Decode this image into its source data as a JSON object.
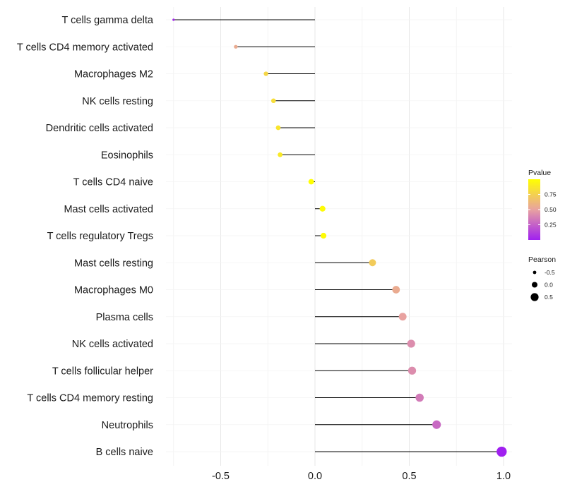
{
  "chart_data": {
    "type": "lollipop",
    "categories": [
      "T cells gamma delta",
      "T cells CD4 memory activated",
      "Macrophages M2",
      "NK cells resting",
      "Dendritic cells activated",
      "Eosinophils",
      "T cells CD4 naive",
      "Mast cells activated",
      "T cells regulatory  Tregs ",
      "Mast cells resting",
      "Macrophages M0",
      "Plasma cells",
      "NK cells activated",
      "T cells follicular helper",
      "T cells CD4 memory resting",
      "Neutrophils",
      "B cells naive"
    ],
    "values": [
      -0.75,
      -0.42,
      -0.26,
      -0.22,
      -0.195,
      -0.185,
      -0.02,
      0.04,
      0.045,
      0.305,
      0.43,
      0.465,
      0.51,
      0.515,
      0.555,
      0.645,
      0.99
    ],
    "pvalues": [
      0.02,
      0.55,
      0.78,
      0.82,
      0.86,
      0.88,
      1.0,
      0.98,
      0.98,
      0.72,
      0.55,
      0.5,
      0.42,
      0.42,
      0.35,
      0.28,
      0.0
    ],
    "xlim": [
      -0.75,
      1.0
    ],
    "xticks": [
      {
        "value": -0.5,
        "label": "-0.5"
      },
      {
        "value": 0.0,
        "label": "0.0"
      },
      {
        "value": 0.5,
        "label": "0.5"
      },
      {
        "value": 1.0,
        "label": "1.0"
      }
    ],
    "minor_gridlines": [
      -0.75,
      -0.25,
      0.25,
      0.75
    ],
    "legend": {
      "color_title": "Pvalue",
      "color_ticks": [
        {
          "value": 0.75,
          "label": "0.75"
        },
        {
          "value": 0.5,
          "label": "0.50"
        },
        {
          "value": 0.25,
          "label": "0.25"
        }
      ],
      "color_low": "#a020f0",
      "color_mid": "#e8a2a0",
      "color_high": "#ffff00",
      "size_title": "Pearson",
      "size_items": [
        {
          "value": -0.5,
          "label": "-0.5"
        },
        {
          "value": 0.0,
          "label": "0.0"
        },
        {
          "value": 0.5,
          "label": "0.5"
        }
      ]
    }
  }
}
